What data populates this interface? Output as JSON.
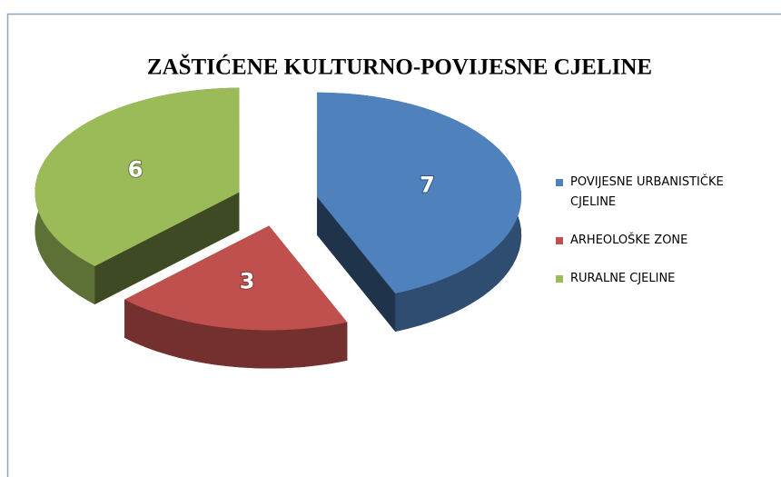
{
  "chart_data": {
    "type": "pie3d",
    "title": "ZAŠTIĆENE KULTURNO-POVIJESNE CJELINE",
    "categories": [
      "POVIJESNE  URBANISTIČKE CJELINE",
      "ARHEOLOŠKE ZONE",
      "RURALNE CJELINE"
    ],
    "values": [
      7,
      3,
      6
    ],
    "colors": [
      "#4f81bd",
      "#c0504d",
      "#9bbb59"
    ],
    "legend": "right"
  }
}
